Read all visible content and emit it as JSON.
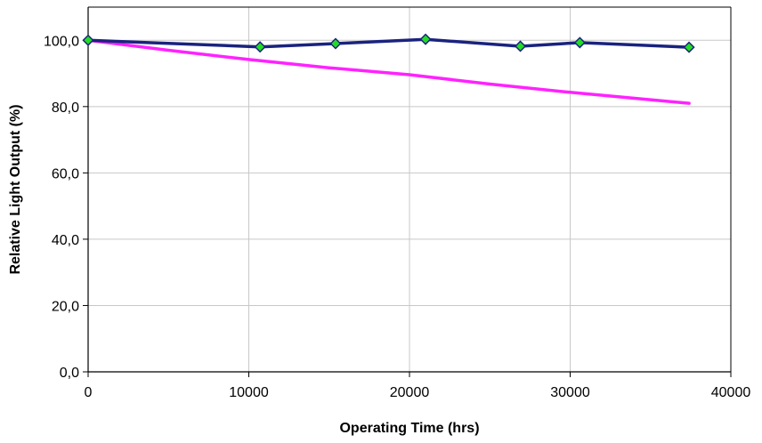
{
  "chart_data": {
    "type": "line",
    "title": "",
    "xlabel": "Operating Time (hrs)",
    "ylabel": "Relative Light Output (%)",
    "xlim": [
      0,
      40000
    ],
    "ylim": [
      0,
      110
    ],
    "x_ticks": [
      0,
      10000,
      20000,
      30000,
      40000
    ],
    "x_tick_labels": [
      "0",
      "10000",
      "20000",
      "30000",
      "40000"
    ],
    "y_ticks": [
      0,
      20,
      40,
      60,
      80,
      100
    ],
    "y_tick_labels": [
      "0,0",
      "20,0",
      "40,0",
      "60,0",
      "80,0",
      "100,0"
    ],
    "grid": true,
    "legend": "none",
    "series": [
      {
        "color": "#1a237e",
        "marker": "diamond",
        "marker_color": "#22dd22",
        "x": [
          0,
          10700,
          15400,
          21000,
          26900,
          30600,
          37400
        ],
        "y": [
          100.0,
          98.0,
          99.0,
          100.3,
          98.2,
          99.3,
          97.9
        ]
      },
      {
        "color": "#ff22ff",
        "marker": "none",
        "x": [
          0,
          5000,
          10000,
          15000,
          20000,
          25000,
          30000,
          37400
        ],
        "y": [
          100.0,
          97.0,
          94.2,
          91.7,
          89.6,
          86.8,
          84.3,
          81.0
        ]
      }
    ]
  }
}
